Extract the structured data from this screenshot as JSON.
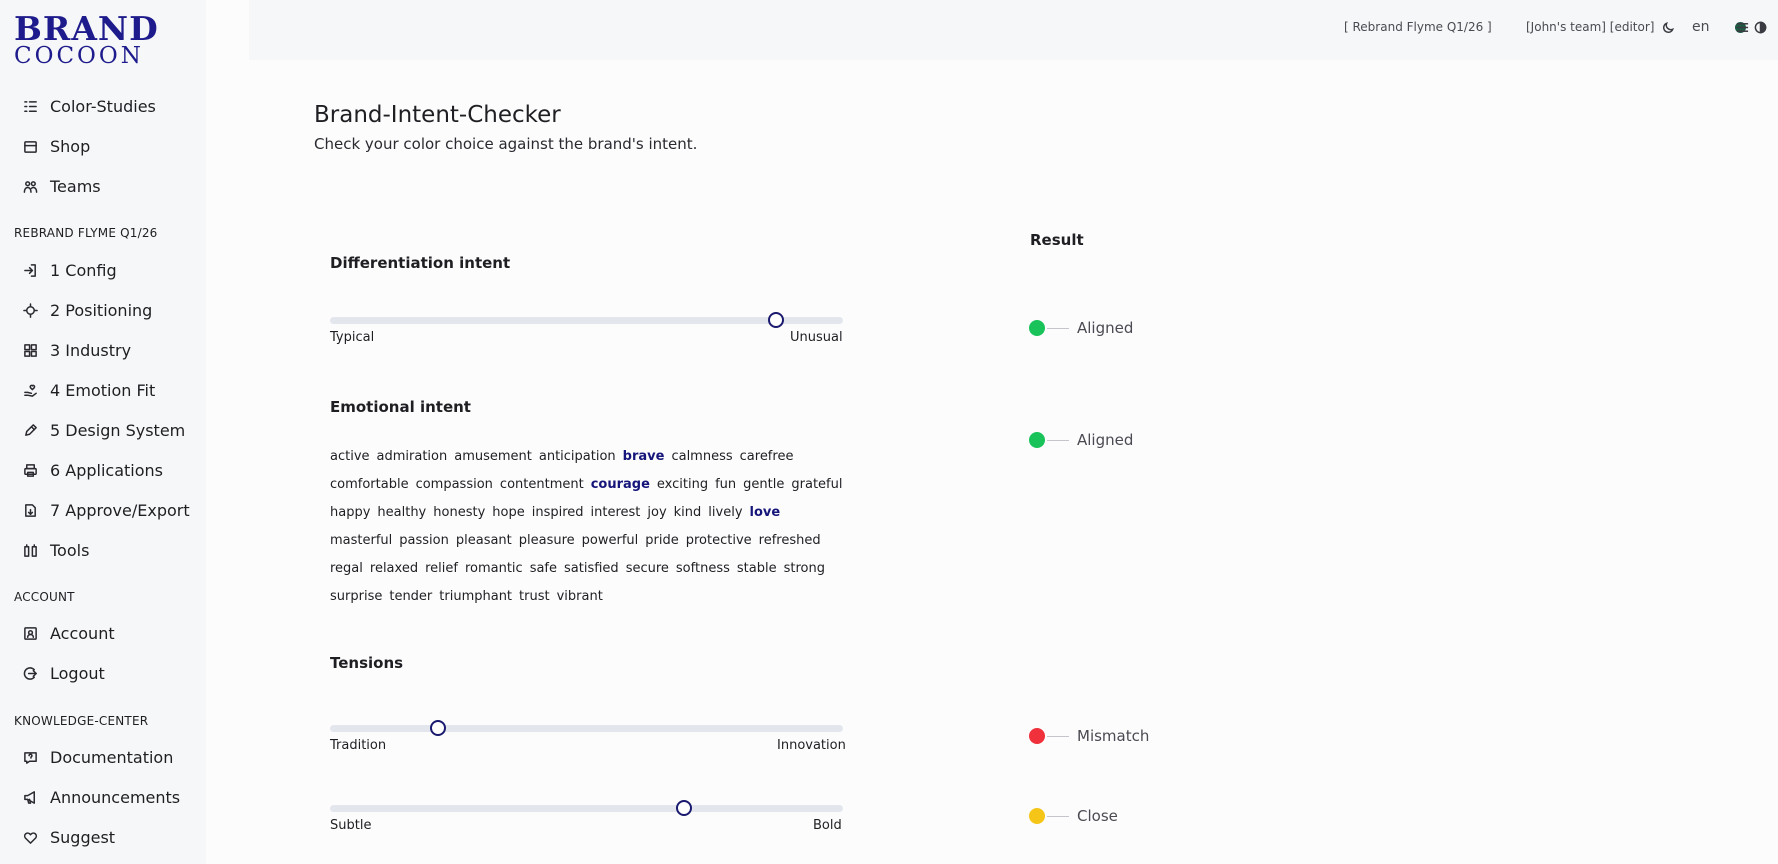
{
  "brand": {
    "line1": "BRAND",
    "line2": "COCOON"
  },
  "sidebar": {
    "top_items": [
      {
        "label": "Color-Studies",
        "icon": "list-icon"
      },
      {
        "label": "Shop",
        "icon": "shop-icon"
      },
      {
        "label": "Teams",
        "icon": "users-icon"
      }
    ],
    "project_heading": "REBRAND FLYME Q1/26",
    "project_items": [
      {
        "label": "1 Config",
        "icon": "login-icon"
      },
      {
        "label": "2 Positioning",
        "icon": "target-icon"
      },
      {
        "label": "3 Industry",
        "icon": "grid-icon"
      },
      {
        "label": "4 Emotion Fit",
        "icon": "hand-heart-icon"
      },
      {
        "label": "5 Design System",
        "icon": "pencil-icon"
      },
      {
        "label": "6 Applications",
        "icon": "printer-icon"
      },
      {
        "label": "7 Approve/Export",
        "icon": "file-export-icon"
      },
      {
        "label": "Tools",
        "icon": "tools-icon"
      }
    ],
    "account_heading": "ACCOUNT",
    "account_items": [
      {
        "label": "Account",
        "icon": "user-card-icon"
      },
      {
        "label": "Logout",
        "icon": "logout-icon"
      }
    ],
    "knowledge_heading": "KNOWLEDGE-CENTER",
    "knowledge_items": [
      {
        "label": "Documentation",
        "icon": "help-icon"
      },
      {
        "label": "Announcements",
        "icon": "megaphone-icon"
      },
      {
        "label": "Suggest",
        "icon": "heart-icon"
      }
    ]
  },
  "topbar": {
    "project": "[ Rebrand Flyme Q1/26 ]",
    "project_color": "#1d5b44",
    "team": "[John's team] [editor]",
    "language": "en"
  },
  "main": {
    "title": "Brand-Intent-Checker",
    "subtitle": "Check your color choice against the brand's intent.",
    "differentiation": {
      "heading": "Differentiation intent",
      "left_label": "Typical",
      "right_label": "Unusual",
      "value": 0.87
    },
    "emotional": {
      "heading": "Emotional intent",
      "words": [
        "active",
        "admiration",
        "amusement",
        "anticipation",
        "brave",
        "calmness",
        "carefree",
        "comfortable",
        "compassion",
        "contentment",
        "courage",
        "exciting",
        "fun",
        "gentle",
        "grateful",
        "happy",
        "healthy",
        "honesty",
        "hope",
        "inspired",
        "interest",
        "joy",
        "kind",
        "lively",
        "love",
        "masterful",
        "passion",
        "pleasant",
        "pleasure",
        "powerful",
        "pride",
        "protective",
        "refreshed",
        "regal",
        "relaxed",
        "relief",
        "romantic",
        "safe",
        "satisfied",
        "secure",
        "softness",
        "stable",
        "strong",
        "surprise",
        "tender",
        "triumphant",
        "trust",
        "vibrant"
      ],
      "selected": [
        "brave",
        "courage",
        "love"
      ]
    },
    "tensions": {
      "heading": "Tensions",
      "sliders": [
        {
          "left_label": "Tradition",
          "right_label": "Innovation",
          "value": 0.21
        },
        {
          "left_label": "Subtle",
          "right_label": "Bold",
          "value": 0.69
        }
      ]
    }
  },
  "results": {
    "heading": "Result",
    "items": [
      {
        "label": "Aligned",
        "color": "#19c35a"
      },
      {
        "label": "Aligned",
        "color": "#19c35a"
      },
      {
        "label": "Mismatch",
        "color": "#f0303a"
      },
      {
        "label": "Close",
        "color": "#f5c518"
      }
    ]
  }
}
